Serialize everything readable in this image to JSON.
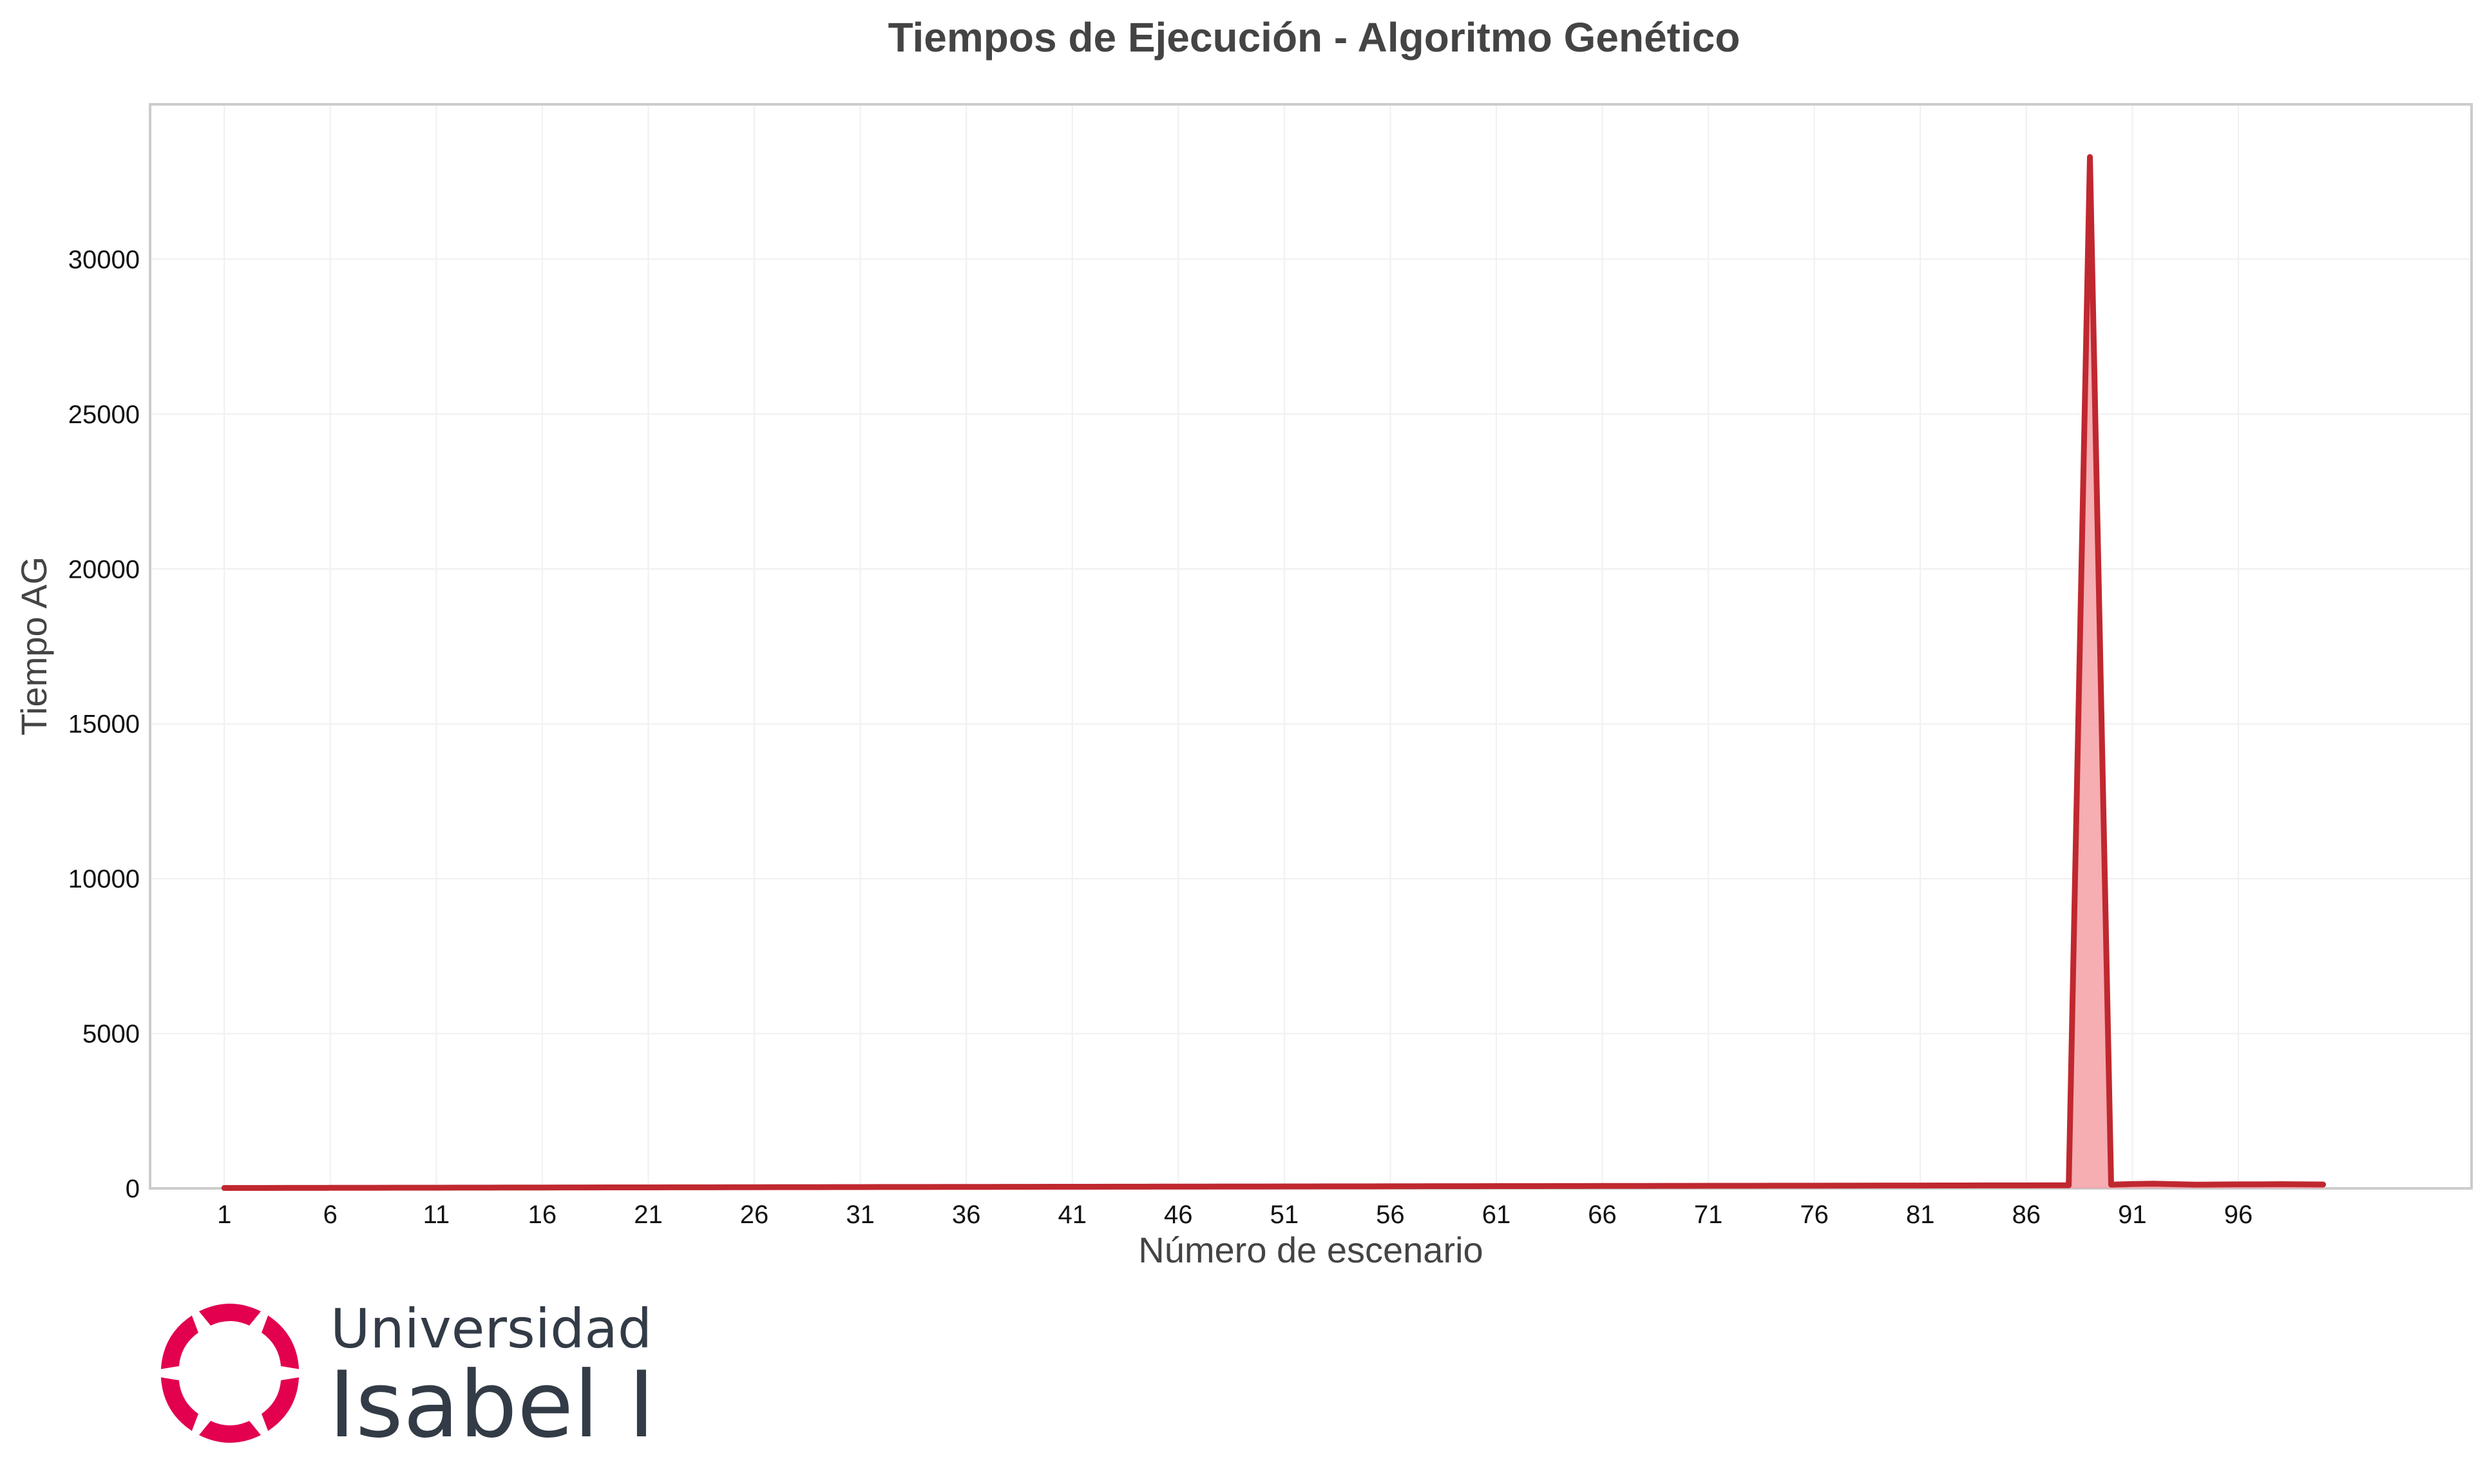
{
  "chart_data": {
    "type": "line",
    "title": "Tiempos de Ejecución - Algoritmo Genético",
    "xlabel": "Número de escenario",
    "ylabel": "Tiempo AG",
    "xlim": [
      -2.5,
      107
    ],
    "ylim": [
      0,
      35000
    ],
    "xticks": [
      1,
      6,
      11,
      16,
      21,
      26,
      31,
      36,
      41,
      46,
      51,
      56,
      61,
      66,
      71,
      76,
      81,
      86,
      91,
      96
    ],
    "yticks": [
      0,
      5000,
      10000,
      15000,
      20000,
      25000,
      30000
    ],
    "grid": true,
    "series": [
      {
        "color": "#c0282f",
        "x": [
          1,
          2,
          3,
          4,
          5,
          6,
          7,
          8,
          9,
          10,
          11,
          12,
          13,
          14,
          15,
          16,
          17,
          18,
          19,
          20,
          21,
          22,
          23,
          24,
          25,
          26,
          27,
          28,
          29,
          30,
          31,
          32,
          33,
          34,
          35,
          36,
          37,
          38,
          39,
          40,
          41,
          42,
          43,
          44,
          45,
          46,
          47,
          48,
          49,
          50,
          51,
          52,
          53,
          54,
          55,
          56,
          57,
          58,
          59,
          60,
          61,
          62,
          63,
          64,
          65,
          66,
          67,
          68,
          69,
          70,
          71,
          72,
          73,
          74,
          75,
          76,
          77,
          78,
          79,
          80,
          81,
          82,
          83,
          84,
          85,
          86,
          87,
          88,
          89,
          90,
          91,
          92,
          93,
          94,
          95,
          96,
          97,
          98,
          99,
          100
        ],
        "values": [
          12,
          13,
          14,
          15,
          16,
          17,
          18,
          19,
          20,
          21,
          22,
          23,
          24,
          25,
          26,
          27,
          28,
          29,
          30,
          31,
          32,
          33,
          34,
          35,
          36,
          37,
          38,
          39,
          40,
          41,
          42,
          43,
          44,
          45,
          46,
          47,
          48,
          49,
          50,
          51,
          52,
          53,
          54,
          55,
          56,
          57,
          58,
          59,
          60,
          61,
          62,
          63,
          64,
          65,
          66,
          67,
          68,
          69,
          70,
          71,
          72,
          73,
          74,
          75,
          76,
          77,
          78,
          79,
          80,
          81,
          82,
          83,
          84,
          85,
          86,
          87,
          88,
          89,
          90,
          91,
          92,
          93,
          94,
          95,
          96,
          97,
          98,
          99,
          33300,
          120,
          140,
          150,
          135,
          120,
          125,
          130,
          130,
          135,
          130,
          125
        ]
      }
    ]
  },
  "logo": {
    "line1": "Universidad",
    "line2": "Isabel I",
    "mark_color": "#e2004f",
    "text_color": "#323b46"
  }
}
